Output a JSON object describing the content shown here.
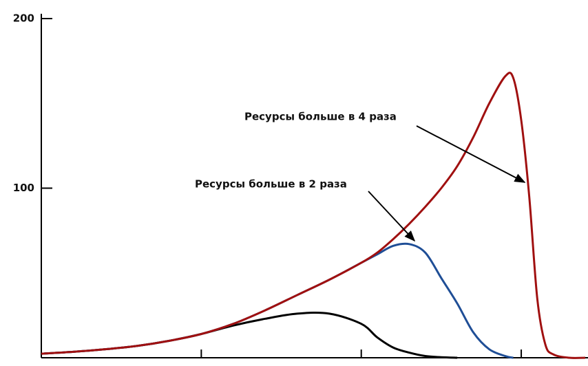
{
  "chart_data": {
    "type": "line",
    "x": [
      0,
      0.2,
      0.4,
      0.6,
      0.8,
      1.0,
      1.2,
      1.4,
      1.6,
      1.8,
      2.0,
      2.1,
      2.2,
      2.3,
      2.4,
      2.5,
      2.6,
      2.7,
      2.8,
      2.9,
      2.95,
      3.0,
      3.05,
      3.1,
      3.15,
      3.2,
      3.3,
      3.4
    ],
    "series": [
      {
        "color": "#000000",
        "values": [
          2.4,
          3.5,
          5,
          7,
          10,
          14,
          19,
          23,
          26,
          26,
          20,
          12,
          6,
          3,
          1,
          0.3,
          0,
          null,
          null,
          null,
          null,
          null,
          null,
          null,
          null,
          null,
          null,
          null
        ]
      },
      {
        "color": "#1f4e96",
        "values": [
          2.4,
          3.5,
          5,
          7,
          10,
          14,
          20,
          28,
          37,
          46,
          56,
          61,
          66,
          67,
          62,
          47,
          32,
          15,
          5,
          1,
          0,
          null,
          null,
          null,
          null,
          null,
          null,
          null
        ]
      },
      {
        "color": "#a01010",
        "values": [
          2.4,
          3.5,
          5,
          7,
          10,
          14,
          20,
          28,
          37,
          46,
          56,
          62,
          70,
          79,
          89,
          100,
          113,
          130,
          150,
          166,
          165,
          140,
          95,
          35,
          8,
          2,
          0,
          0
        ]
      }
    ],
    "annotations": [
      "Ресурсы больше в 4 раза",
      "Ресурсы больше в 2 раза"
    ],
    "xlim": [
      0,
      3.4
    ],
    "xticks": [
      1,
      2,
      3
    ],
    "ylim": [
      0,
      200
    ],
    "yticks": [
      100,
      200
    ]
  }
}
